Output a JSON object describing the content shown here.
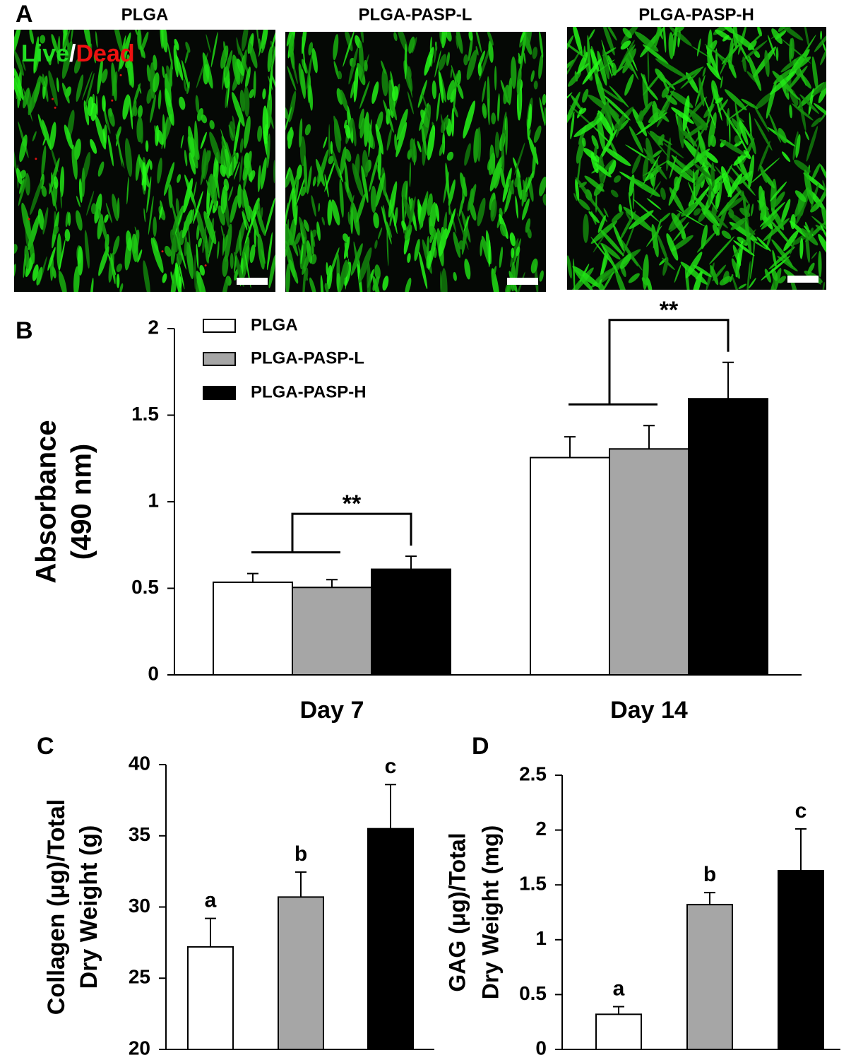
{
  "figure": {
    "panel_label": "A",
    "images": [
      {
        "title": "PLGA"
      },
      {
        "title": "PLGA-PASP-L"
      },
      {
        "title": "PLGA-PASP-H"
      }
    ],
    "image_legend": [
      "Live",
      "/",
      "Dead"
    ]
  },
  "chart_data": [
    {
      "type": "bar",
      "panel_label": "B",
      "categories": [
        "Day 7",
        "Day 14"
      ],
      "series": [
        {
          "name": "PLGA",
          "color": "#ffffff",
          "values": [
            0.535,
            1.255
          ],
          "errors": [
            0.05,
            0.12
          ]
        },
        {
          "name": "PLGA-PASP-L",
          "color": "#a6a6a6",
          "values": [
            0.505,
            1.305
          ],
          "errors": [
            0.045,
            0.135
          ]
        },
        {
          "name": "PLGA-PASP-H",
          "color": "#000000",
          "values": [
            0.61,
            1.595
          ],
          "errors": [
            0.075,
            0.21
          ]
        }
      ],
      "ylim": [
        0,
        2
      ],
      "yticks": [
        0,
        0.5,
        1,
        1.5,
        2
      ],
      "y_label": [
        "Absorbance",
        "(490 nm)"
      ],
      "annotations": [
        "**",
        "**"
      ]
    },
    {
      "type": "bar",
      "panel_label": "C",
      "categories": [
        null,
        null,
        null
      ],
      "values": [
        27.2,
        30.7,
        35.5
      ],
      "errors": [
        2.0,
        1.75,
        3.1
      ],
      "colors": [
        "#ffffff",
        "#a6a6a6",
        "#000000"
      ],
      "ylim": [
        20,
        40
      ],
      "yticks": [
        20,
        25,
        30,
        35,
        40
      ],
      "y_label": [
        "Collagen (μg)/Total",
        "Dry Weight (g)"
      ],
      "annotations": [
        "a",
        "b",
        "c"
      ]
    },
    {
      "type": "bar",
      "panel_label": "D",
      "categories": [
        null,
        null,
        null
      ],
      "values": [
        0.32,
        1.32,
        1.63
      ],
      "errors": [
        0.07,
        0.11,
        0.38
      ],
      "colors": [
        "#ffffff",
        "#a6a6a6",
        "#000000"
      ],
      "ylim": [
        0,
        2.5
      ],
      "yticks": [
        0,
        0.5,
        1,
        1.5,
        2,
        2.5
      ],
      "y_label": [
        "GAG (μg)/Total",
        "Dry Weight (mg)"
      ],
      "annotations": [
        "a",
        "b",
        "c"
      ]
    }
  ]
}
